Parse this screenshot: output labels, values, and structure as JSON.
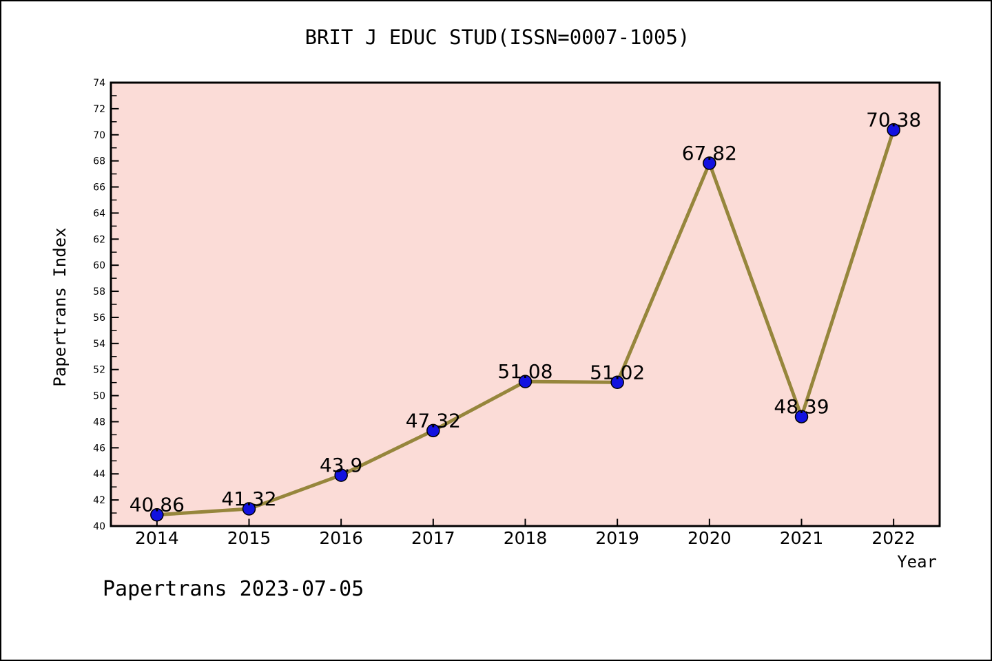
{
  "chart_data": {
    "type": "line",
    "title": "BRIT J EDUC STUD(ISSN=0007-1005)",
    "xlabel": "Year",
    "ylabel": "Papertrans Index",
    "footer": "Papertrans 2023-07-05",
    "x": [
      2014,
      2015,
      2016,
      2017,
      2018,
      2019,
      2020,
      2021,
      2022
    ],
    "x_tick_labels": [
      "2014",
      "2015",
      "2016",
      "2017",
      "2018",
      "2019",
      "2020",
      "2021",
      "2022"
    ],
    "values": [
      40.86,
      41.32,
      43.9,
      47.32,
      51.08,
      51.02,
      67.82,
      48.39,
      70.38
    ],
    "point_labels": [
      "40.86",
      "41.32",
      "43.9",
      "47.32",
      "51.08",
      "51.02",
      "67.82",
      "48.39",
      "70.38"
    ],
    "ylim": [
      40,
      74
    ],
    "xlim": [
      2013.5,
      2022.5
    ],
    "ytick_label_step": 2,
    "ytick_minor_step": 1,
    "grid": false,
    "legend_position": "none",
    "colors": {
      "line": "#96863C",
      "marker_fill": "#1212E0",
      "marker_edge": "#000000",
      "plot_bg": "#FBDCD7",
      "axis": "#000000",
      "text": "#000000",
      "figure_bg": "#FFFFFF"
    }
  }
}
